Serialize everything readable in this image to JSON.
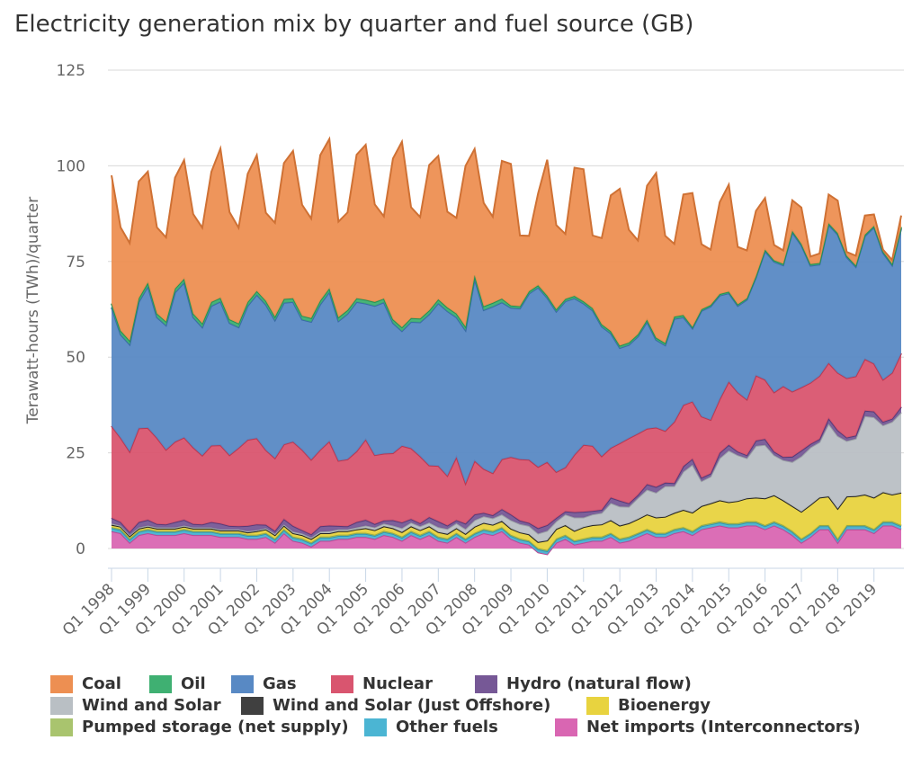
{
  "title": "Electricity generation mix by quarter and fuel source (GB)",
  "chart_data": {
    "type": "area",
    "stacked": true,
    "title": "Electricity generation mix by quarter and fuel source (GB)",
    "ylabel": "Terawatt-hours (TWh)/quarter",
    "xlabel": "",
    "ylim": [
      0,
      125
    ],
    "yticks": [
      0,
      25,
      50,
      75,
      100,
      125
    ],
    "grid": true,
    "legend": "bottom",
    "xtick_labels": [
      "Q1 1998",
      "Q1 1999",
      "Q1 2000",
      "Q1 2001",
      "Q1 2002",
      "Q1 2003",
      "Q1 2004",
      "Q1 2005",
      "Q1 2006",
      "Q1 2007",
      "Q1 2008",
      "Q1 2009",
      "Q1 2010",
      "Q1 2011",
      "Q1 2012",
      "Q1 2013",
      "Q1 2014",
      "Q1 2015",
      "Q1 2016",
      "Q1 2017",
      "Q1 2018",
      "Q1 2019"
    ],
    "categories": [
      "Q1 1998",
      "Q2 1998",
      "Q3 1998",
      "Q4 1998",
      "Q1 1999",
      "Q2 1999",
      "Q3 1999",
      "Q4 1999",
      "Q1 2000",
      "Q2 2000",
      "Q3 2000",
      "Q4 2000",
      "Q1 2001",
      "Q2 2001",
      "Q3 2001",
      "Q4 2001",
      "Q1 2002",
      "Q2 2002",
      "Q3 2002",
      "Q4 2002",
      "Q1 2003",
      "Q2 2003",
      "Q3 2003",
      "Q4 2003",
      "Q1 2004",
      "Q2 2004",
      "Q3 2004",
      "Q4 2004",
      "Q1 2005",
      "Q2 2005",
      "Q3 2005",
      "Q4 2005",
      "Q1 2006",
      "Q2 2006",
      "Q3 2006",
      "Q4 2006",
      "Q1 2007",
      "Q2 2007",
      "Q3 2007",
      "Q4 2007",
      "Q1 2008",
      "Q2 2008",
      "Q3 2008",
      "Q4 2008",
      "Q1 2009",
      "Q2 2009",
      "Q3 2009",
      "Q4 2009",
      "Q1 2010",
      "Q2 2010",
      "Q3 2010",
      "Q4 2010",
      "Q1 2011",
      "Q2 2011",
      "Q3 2011",
      "Q4 2011",
      "Q1 2012",
      "Q2 2012",
      "Q3 2012",
      "Q4 2012",
      "Q1 2013",
      "Q2 2013",
      "Q3 2013",
      "Q4 2013",
      "Q1 2014",
      "Q2 2014",
      "Q3 2014",
      "Q4 2014",
      "Q1 2015",
      "Q2 2015",
      "Q3 2015",
      "Q4 2015",
      "Q1 2016",
      "Q2 2016",
      "Q3 2016",
      "Q4 2016",
      "Q1 2017",
      "Q2 2017",
      "Q3 2017",
      "Q4 2017",
      "Q1 2018",
      "Q2 2018",
      "Q3 2018",
      "Q4 2018",
      "Q1 2019",
      "Q2 2019",
      "Q3 2019",
      "Q4 2019"
    ],
    "series": [
      {
        "name": "Net imports (Interconnectors)",
        "color": "#d966b2",
        "values": [
          4.5,
          4,
          1.5,
          3.5,
          4,
          3.5,
          3.5,
          3.5,
          4,
          3.5,
          3.5,
          3.5,
          3,
          3,
          3,
          2.5,
          2.5,
          3,
          1.5,
          4,
          2,
          1.5,
          0.5,
          2,
          2,
          2.5,
          2.5,
          3,
          3,
          2.5,
          3.5,
          3,
          2,
          3.5,
          2.5,
          3.5,
          2,
          1.5,
          3,
          1.5,
          3,
          4,
          3.5,
          4.5,
          2.5,
          1.5,
          1,
          -1,
          -1.5,
          1.5,
          2.5,
          1,
          1.5,
          2,
          2,
          3,
          1.5,
          2,
          3,
          4,
          3,
          3,
          4,
          4.5,
          3.5,
          5,
          5.5,
          6,
          5.5,
          5.5,
          6,
          6,
          5,
          6,
          5,
          3.5,
          1.5,
          3,
          5,
          5,
          1.5,
          5,
          5,
          5,
          4,
          6,
          6,
          5
        ]
      },
      {
        "name": "Other fuels",
        "color": "#4bb5d3",
        "values": [
          0.8,
          0.8,
          0.8,
          0.8,
          0.8,
          0.8,
          0.8,
          0.8,
          0.8,
          0.8,
          0.8,
          0.8,
          0.8,
          0.8,
          0.8,
          0.8,
          0.8,
          0.8,
          0.8,
          0.8,
          0.8,
          0.8,
          0.8,
          0.8,
          0.8,
          0.8,
          0.8,
          0.8,
          0.8,
          0.8,
          0.8,
          0.8,
          0.8,
          0.8,
          0.8,
          0.8,
          0.8,
          0.8,
          0.8,
          0.8,
          0.8,
          0.8,
          0.8,
          0.8,
          0.8,
          0.8,
          0.8,
          0.8,
          0.8,
          0.8,
          0.8,
          0.8,
          0.8,
          0.8,
          0.8,
          0.8,
          0.8,
          0.8,
          0.8,
          0.8,
          0.8,
          0.8,
          0.8,
          0.8,
          0.8,
          0.8,
          0.8,
          0.8,
          0.8,
          0.8,
          0.8,
          0.8,
          0.8,
          0.8,
          0.8,
          0.8,
          0.8,
          0.8,
          0.8,
          0.8,
          0.8,
          0.8,
          0.8,
          0.8,
          0.8,
          0.8,
          0.8,
          0.8
        ]
      },
      {
        "name": "Pumped storage (net supply)",
        "color": "#a9c46e",
        "values": [
          0.3,
          0.3,
          0.3,
          0.3,
          0.3,
          0.3,
          0.3,
          0.3,
          0.3,
          0.3,
          0.3,
          0.3,
          0.3,
          0.3,
          0.3,
          0.3,
          0.3,
          0.3,
          0.3,
          0.3,
          0.3,
          0.3,
          0.3,
          0.3,
          0.3,
          0.3,
          0.3,
          0.3,
          0.3,
          0.3,
          0.3,
          0.3,
          0.3,
          0.3,
          0.3,
          0.3,
          0.3,
          0.3,
          0.3,
          0.3,
          0.3,
          0.3,
          0.3,
          0.3,
          0.3,
          0.3,
          0.3,
          0.3,
          0.3,
          0.3,
          0.3,
          0.3,
          0.3,
          0.3,
          0.3,
          0.3,
          0.3,
          0.3,
          0.3,
          0.3,
          0.3,
          0.3,
          0.3,
          0.3,
          0.3,
          0.3,
          0.3,
          0.3,
          0.3,
          0.3,
          0.3,
          0.3,
          0.3,
          0.3,
          0.3,
          0.3,
          0.3,
          0.3,
          0.3,
          0.3,
          0.3,
          0.3,
          0.3,
          0.3,
          0.3,
          0.3,
          0.3,
          0.3
        ]
      },
      {
        "name": "Bioenergy",
        "color": "#e8d33f",
        "values": [
          0.6,
          0.6,
          0.6,
          0.6,
          0.6,
          0.6,
          0.6,
          0.6,
          0.6,
          0.6,
          0.6,
          0.6,
          0.6,
          0.6,
          0.6,
          0.6,
          0.9,
          0.9,
          0.9,
          0.9,
          0.9,
          0.9,
          0.9,
          0.9,
          0.9,
          0.9,
          0.9,
          0.9,
          1.2,
          1.2,
          1.2,
          1.2,
          1.2,
          1.2,
          1.2,
          1.2,
          1.2,
          1.2,
          1.2,
          1.2,
          1.6,
          1.6,
          1.6,
          1.6,
          1.6,
          1.6,
          1.6,
          1.6,
          2.5,
          2.5,
          2.5,
          2.5,
          3,
          3,
          3.2,
          3.3,
          3.4,
          3.5,
          3.6,
          3.8,
          4,
          4.2,
          4.2,
          4.5,
          4.8,
          5,
          5.2,
          5.5,
          5.5,
          5.8,
          6,
          6.2,
          7,
          6.8,
          6.5,
          6.5,
          7,
          7.3,
          7.2,
          7.5,
          7.8,
          7.5,
          7.6,
          8,
          8.2,
          7.6,
          7,
          8.5
        ]
      },
      {
        "name": "Wind and Solar (Just Offshore)",
        "color": "#404040",
        "values": [
          0,
          0,
          0,
          0,
          0,
          0,
          0,
          0,
          0,
          0,
          0,
          0,
          0,
          0,
          0,
          0,
          0,
          0,
          0,
          0,
          0,
          0,
          0,
          0,
          0,
          0,
          0,
          0,
          0,
          0,
          0,
          0,
          0,
          0,
          0,
          0,
          0,
          0,
          0,
          0,
          0,
          0,
          0,
          0,
          0,
          0,
          0,
          0,
          0,
          0,
          0,
          0,
          0,
          0,
          0,
          0,
          0,
          0,
          0,
          0,
          0,
          0,
          0,
          0,
          0,
          0,
          0,
          0,
          0,
          0,
          0,
          0,
          0,
          0,
          0,
          0,
          0,
          0,
          0,
          0,
          0,
          0,
          0,
          0,
          0,
          0,
          0,
          0
        ]
      },
      {
        "name": "Wind and Solar",
        "color": "#b9bfc4",
        "values": [
          0.3,
          0.3,
          0.3,
          0.3,
          0.3,
          0.3,
          0.3,
          0.3,
          0.3,
          0.3,
          0.3,
          0.3,
          0.3,
          0.3,
          0.3,
          0.3,
          0.3,
          0.3,
          0.3,
          0.3,
          0.4,
          0.4,
          0.4,
          0.4,
          0.5,
          0.5,
          0.5,
          0.5,
          0.7,
          0.7,
          0.7,
          0.7,
          1,
          1,
          1,
          1,
          1.3,
          1.3,
          1.3,
          1.3,
          1.7,
          1.7,
          1.7,
          1.7,
          2.2,
          2.2,
          2.2,
          2.2,
          2.5,
          2,
          2.8,
          3.5,
          2.5,
          2.8,
          3,
          4.5,
          5,
          4.3,
          5.5,
          6.5,
          6.5,
          8,
          7,
          10,
          12.5,
          6.5,
          7,
          11,
          13.5,
          12,
          10.5,
          13.5,
          14,
          10.5,
          10.5,
          11.5,
          14.5,
          15,
          14.5,
          19,
          19,
          14.5,
          15,
          20.5,
          21,
          17.5,
          19,
          21
        ]
      },
      {
        "name": "Hydro (natural flow)",
        "color": "#765896",
        "values": [
          1.5,
          0.9,
          0.8,
          1.4,
          1.5,
          0.9,
          0.8,
          1.4,
          1.5,
          0.9,
          0.8,
          1.4,
          1.5,
          0.9,
          0.8,
          1.4,
          1.5,
          0.9,
          0.8,
          1.4,
          1.5,
          0.9,
          0.8,
          1.4,
          1.5,
          0.9,
          0.8,
          1.4,
          1.5,
          0.9,
          0.8,
          1.4,
          1.5,
          0.9,
          0.8,
          1.4,
          1.5,
          0.9,
          0.8,
          1.4,
          1.5,
          0.9,
          0.8,
          1.4,
          1.5,
          0.9,
          0.8,
          1.4,
          1.5,
          0.9,
          0.8,
          1.4,
          1.5,
          0.9,
          0.8,
          1.4,
          1.5,
          0.9,
          0.8,
          1.4,
          1.5,
          0.9,
          0.8,
          1.4,
          1.5,
          0.9,
          0.8,
          1.4,
          1.5,
          0.9,
          0.8,
          1.4,
          1.5,
          0.9,
          0.8,
          1.4,
          1.5,
          0.9,
          0.8,
          1.4,
          1.5,
          0.9,
          0.8,
          1.4,
          1.5,
          0.9,
          0.8,
          1.4
        ]
      },
      {
        "name": "Nuclear",
        "color": "#d9556f",
        "values": [
          24,
          22,
          21,
          24.5,
          24,
          22.5,
          19.5,
          21,
          21.5,
          20,
          18,
          20,
          20.5,
          18.5,
          20.5,
          22.5,
          22.5,
          19.5,
          19,
          19.5,
          22,
          21,
          19.5,
          20,
          22,
          17,
          17.5,
          18.5,
          21,
          18,
          17.5,
          17.5,
          20,
          18.5,
          17.5,
          13.5,
          14.5,
          13,
          16.5,
          10.5,
          14,
          11.5,
          11,
          13,
          15,
          16,
          16.5,
          16,
          16.5,
          12,
          11.5,
          15,
          17.5,
          17,
          14,
          13,
          15,
          17,
          16,
          14.5,
          15.5,
          13.5,
          16,
          16,
          15,
          16,
          14,
          14,
          16.5,
          15.5,
          14.5,
          17,
          15.5,
          15.5,
          18.5,
          17,
          16.5,
          16,
          16.5,
          14.5,
          15,
          15.5,
          15.5,
          13.5,
          12.5,
          11,
          12,
          14
        ]
      },
      {
        "name": "Gas",
        "color": "#5889c4",
        "values": [
          31,
          27,
          28,
          33,
          37,
          31.5,
          32.5,
          39,
          40.5,
          34,
          33.5,
          36.5,
          37.5,
          34.5,
          31.5,
          35,
          37.5,
          38,
          36,
          37,
          36.5,
          34,
          36,
          38,
          39,
          36.5,
          38,
          39,
          35.5,
          39,
          39.5,
          34,
          30,
          33,
          35,
          39.5,
          42.5,
          43,
          36.5,
          40,
          47.5,
          41.5,
          43.5,
          41,
          39,
          39.4,
          43.4,
          46.9,
          42.9,
          41.9,
          43.4,
          40.9,
          36.9,
          35.4,
          33.9,
          29.9,
          24.9,
          24.4,
          25.4,
          27.9,
          22.9,
          22.4,
          26.9,
          22.9,
          19.1,
          27.6,
          29.6,
          27.1,
          23.1,
          22.6,
          26.1,
          25.6,
          33.6,
          34.1,
          31.6,
          41.6,
          37.1,
          30.6,
          29.1,
          36.1,
          36.1,
          31.6,
          28.6,
          32.1,
          35.6,
          33.1,
          28.1,
          32.6
        ]
      },
      {
        "name": "Oil",
        "color": "#3fb072",
        "values": [
          1,
          1,
          1,
          1,
          1,
          1,
          1,
          1,
          1,
          1,
          1,
          1,
          1,
          1,
          1,
          1,
          1,
          1,
          1,
          1,
          1,
          1,
          1,
          1,
          1,
          1,
          1,
          1,
          1,
          1,
          1,
          1,
          1,
          1,
          1,
          1,
          1,
          1,
          1,
          1,
          1,
          1,
          1,
          1,
          0.6,
          0.6,
          0.6,
          0.6,
          0.6,
          0.6,
          0.6,
          0.6,
          0.6,
          0.6,
          0.6,
          0.6,
          0.6,
          0.6,
          0.6,
          0.6,
          0.6,
          0.6,
          0.6,
          0.6,
          0.4,
          0.4,
          0.4,
          0.4,
          0.4,
          0.4,
          0.4,
          0.4,
          0.4,
          0.4,
          0.4,
          0.4,
          0.4,
          0.4,
          0.4,
          0.4,
          0.4,
          0.4,
          0.4,
          0.4,
          0.4,
          0.4,
          0.4,
          0.4
        ]
      },
      {
        "name": "Coal",
        "color": "#ed8f52",
        "values": [
          33.5,
          27,
          25.5,
          30.5,
          29,
          22.5,
          22,
          29,
          31,
          26,
          25,
          34,
          39,
          28,
          25,
          33.5,
          35.5,
          23,
          24.5,
          35.5,
          38.5,
          29,
          26,
          38,
          39,
          25,
          25.5,
          37.5,
          40.5,
          25.5,
          21.5,
          42,
          48.5,
          29,
          26.5,
          38,
          37.5,
          25,
          25,
          42,
          33,
          27,
          22.5,
          36,
          37,
          18.5,
          14.5,
          24,
          35.5,
          22,
          17,
          33.5,
          34.5,
          19,
          22.5,
          35.5,
          41,
          29.5,
          24.5,
          35,
          43,
          28,
          19,
          31.5,
          35,
          17,
          14.5,
          24,
          28,
          15,
          12.5,
          17,
          13.5,
          4,
          3.5,
          8,
          9.5,
          2,
          2.5,
          7.5,
          8.5,
          1,
          2.5,
          5,
          3,
          0.5,
          1,
          3
        ]
      }
    ]
  },
  "legend": {
    "items": [
      {
        "label": "Coal",
        "color": "#ed8f52"
      },
      {
        "label": "Oil",
        "color": "#3fb072"
      },
      {
        "label": "Gas",
        "color": "#5889c4"
      },
      {
        "label": "Nuclear",
        "color": "#d9556f"
      },
      {
        "label": "Hydro (natural flow)",
        "color": "#765896"
      },
      {
        "label": "Wind and Solar",
        "color": "#b9bfc4"
      },
      {
        "label": "Wind and Solar (Just Offshore)",
        "color": "#404040"
      },
      {
        "label": "Bioenergy",
        "color": "#e8d33f"
      },
      {
        "label": "Pumped storage (net supply)",
        "color": "#a9c46e"
      },
      {
        "label": "Other fuels",
        "color": "#4bb5d3"
      },
      {
        "label": "Net imports (Interconnectors)",
        "color": "#d966b2"
      }
    ]
  }
}
